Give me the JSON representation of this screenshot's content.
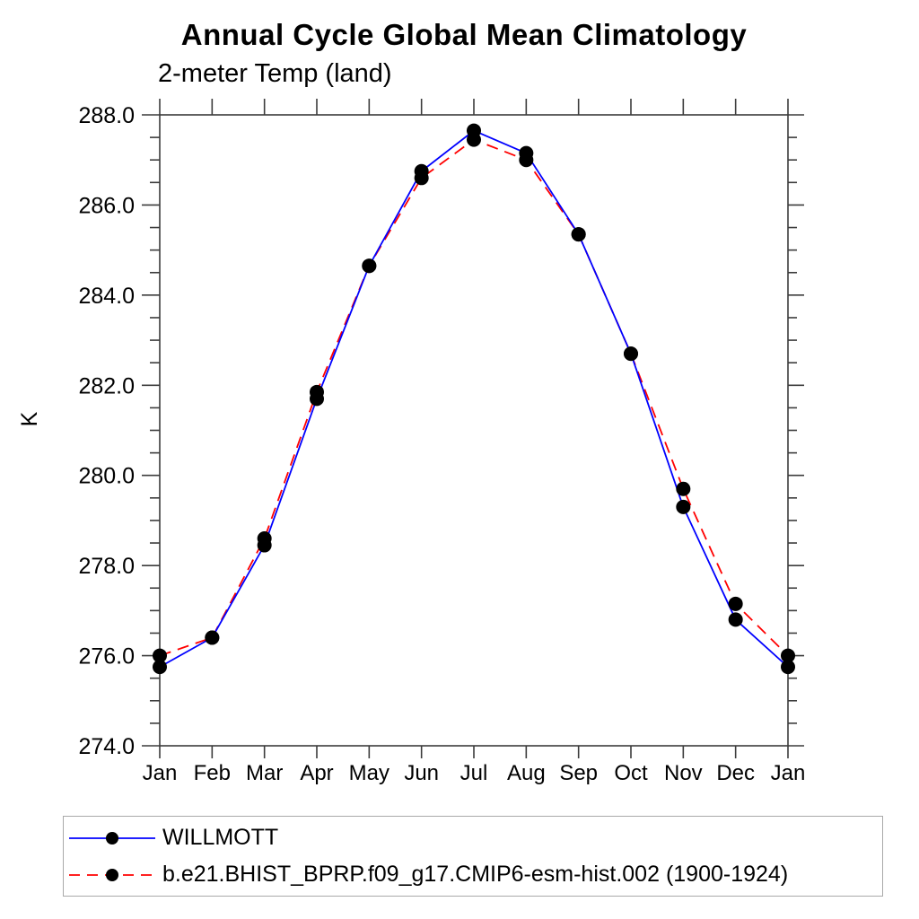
{
  "title": "Annual Cycle Global Mean Climatology",
  "subtitle": "2-meter Temp (land)",
  "colors": {
    "background": "#ffffff",
    "text": "#000000",
    "axis": "#3c3c3c",
    "legend_border": "#a9a9a9"
  },
  "chart_data": {
    "type": "line",
    "title": "Annual Cycle Global Mean Climatology",
    "subtitle": "2-meter Temp (land)",
    "xlabel": "",
    "ylabel": "K",
    "categories": [
      "Jan",
      "Feb",
      "Mar",
      "Apr",
      "May",
      "Jun",
      "Jul",
      "Aug",
      "Sep",
      "Oct",
      "Nov",
      "Dec",
      "Jan"
    ],
    "ylim": [
      274.0,
      288.0
    ],
    "ytick_step": 2.0,
    "ytick_minor_step": 0.5,
    "ytick_labels": [
      "274.0",
      "276.0",
      "278.0",
      "280.0",
      "282.0",
      "284.0",
      "286.0",
      "288.0"
    ],
    "grid": false,
    "legend_position": "bottom-left-box",
    "marker_color": "#000000",
    "series": [
      {
        "name": "WILLMOTT",
        "color": "#0000ff",
        "dash": "solid",
        "marker": "black-dot",
        "values": [
          275.75,
          276.4,
          278.45,
          281.7,
          284.65,
          286.75,
          287.65,
          287.15,
          285.35,
          282.7,
          279.3,
          276.8,
          275.75
        ]
      },
      {
        "name": "b.e21.BHIST_BPRP.f09_g17.CMIP6-esm-hist.002 (1900-1924)",
        "color": "#ff0000",
        "dash": "dashed",
        "marker": "black-dot",
        "values": [
          276.0,
          276.4,
          278.6,
          281.85,
          284.65,
          286.6,
          287.45,
          287.0,
          285.35,
          282.7,
          279.7,
          277.15,
          276.0
        ]
      }
    ]
  }
}
